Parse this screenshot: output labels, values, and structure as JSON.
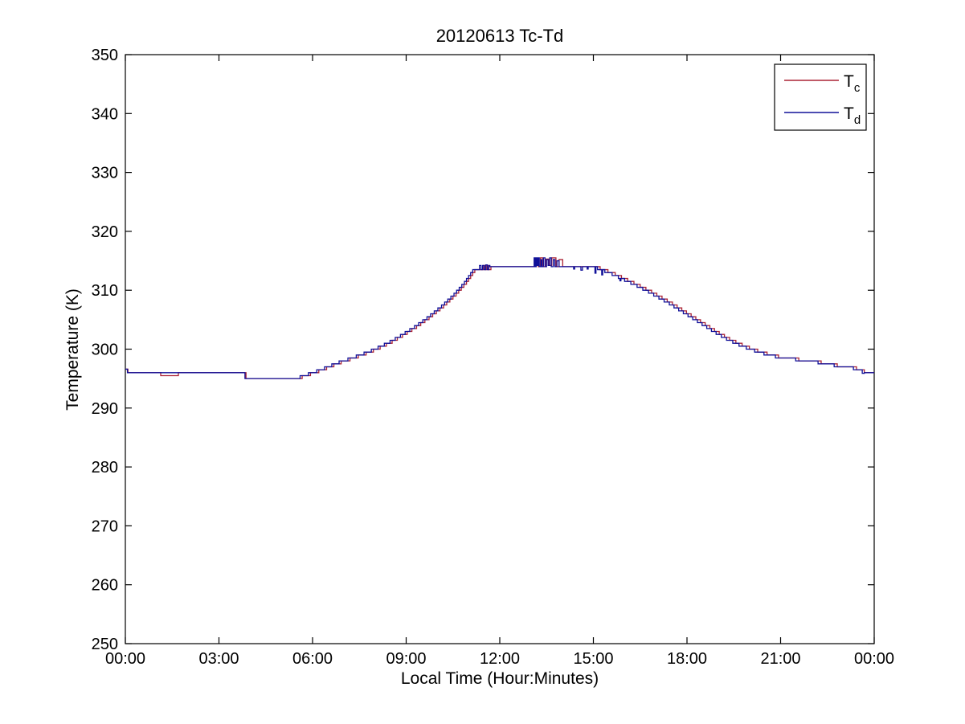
{
  "figure": {
    "background": "#ffffff",
    "axis_color": "#000000"
  },
  "chart_data": {
    "type": "line",
    "title": "20120613 Tc-Td",
    "xlabel": "Local Time (Hour:Minutes)",
    "ylabel": "Temperature (K)",
    "xlim": [
      0,
      1440
    ],
    "ylim": [
      250,
      350
    ],
    "grid": false,
    "interpolation": "step-after",
    "x_ticks": [
      {
        "value": 0,
        "label": "00:00"
      },
      {
        "value": 180,
        "label": "03:00"
      },
      {
        "value": 360,
        "label": "06:00"
      },
      {
        "value": 540,
        "label": "09:00"
      },
      {
        "value": 720,
        "label": "12:00"
      },
      {
        "value": 900,
        "label": "15:00"
      },
      {
        "value": 1080,
        "label": "18:00"
      },
      {
        "value": 1260,
        "label": "21:00"
      },
      {
        "value": 1440,
        "label": "00:00"
      }
    ],
    "y_ticks": [
      {
        "value": 250,
        "label": "250"
      },
      {
        "value": 260,
        "label": "260"
      },
      {
        "value": 270,
        "label": "270"
      },
      {
        "value": 280,
        "label": "280"
      },
      {
        "value": 290,
        "label": "290"
      },
      {
        "value": 300,
        "label": "300"
      },
      {
        "value": 310,
        "label": "310"
      },
      {
        "value": 320,
        "label": "320"
      },
      {
        "value": 330,
        "label": "330"
      },
      {
        "value": 340,
        "label": "340"
      },
      {
        "value": 350,
        "label": "350"
      }
    ],
    "legend": {
      "position": "top-right",
      "entries": [
        {
          "main": "T",
          "sub": "c",
          "color": "#ab2335"
        },
        {
          "main": "T",
          "sub": "d",
          "color": "#101099"
        }
      ]
    },
    "series": [
      {
        "name": "Tc",
        "color": "#ab2335",
        "line_width": 1.3,
        "points_format": "[minutes_after_midnight, kelvin]",
        "points": [
          [
            0,
            296.6
          ],
          [
            5,
            296.0
          ],
          [
            68,
            295.5
          ],
          [
            102,
            296.0
          ],
          [
            232,
            295.0
          ],
          [
            340,
            295.5
          ],
          [
            356,
            296.0
          ],
          [
            372,
            296.5
          ],
          [
            387,
            297.0
          ],
          [
            401,
            297.5
          ],
          [
            415,
            298.0
          ],
          [
            432,
            298.5
          ],
          [
            448,
            299.0
          ],
          [
            463,
            299.5
          ],
          [
            477,
            300.0
          ],
          [
            490,
            300.5
          ],
          [
            502,
            301.0
          ],
          [
            513,
            301.5
          ],
          [
            523,
            302.0
          ],
          [
            533,
            302.5
          ],
          [
            542,
            303.0
          ],
          [
            551,
            303.5
          ],
          [
            560,
            304.0
          ],
          [
            568,
            304.5
          ],
          [
            576,
            305.0
          ],
          [
            584,
            305.5
          ],
          [
            591,
            306.0
          ],
          [
            598,
            306.5
          ],
          [
            605,
            307.0
          ],
          [
            612,
            307.5
          ],
          [
            618,
            308.0
          ],
          [
            624,
            308.5
          ],
          [
            630,
            309.0
          ],
          [
            636,
            309.5
          ],
          [
            641,
            310.0
          ],
          [
            646,
            310.5
          ],
          [
            651,
            311.0
          ],
          [
            656,
            311.5
          ],
          [
            660,
            312.0
          ],
          [
            664,
            312.5
          ],
          [
            668,
            313.0
          ],
          [
            672,
            313.5
          ],
          [
            689,
            314.2
          ],
          [
            692,
            313.5
          ],
          [
            695,
            314.2
          ],
          [
            698,
            313.5
          ],
          [
            703,
            314.0
          ],
          [
            790,
            315.3
          ],
          [
            794,
            314.0
          ],
          [
            798,
            315.5
          ],
          [
            803,
            314.0
          ],
          [
            808,
            315.3
          ],
          [
            814,
            314.2
          ],
          [
            820,
            315.5
          ],
          [
            828,
            314.0
          ],
          [
            834,
            315.2
          ],
          [
            841,
            314.0
          ],
          [
            913,
            313.5
          ],
          [
            928,
            313.0
          ],
          [
            942,
            312.5
          ],
          [
            954,
            312.0
          ],
          [
            966,
            311.5
          ],
          [
            978,
            311.0
          ],
          [
            990,
            310.5
          ],
          [
            1001,
            310.0
          ],
          [
            1012,
            309.5
          ],
          [
            1022,
            309.0
          ],
          [
            1032,
            308.5
          ],
          [
            1042,
            308.0
          ],
          [
            1052,
            307.5
          ],
          [
            1061,
            307.0
          ],
          [
            1070,
            306.5
          ],
          [
            1079,
            306.0
          ],
          [
            1088,
            305.5
          ],
          [
            1097,
            305.0
          ],
          [
            1106,
            304.5
          ],
          [
            1115,
            304.0
          ],
          [
            1124,
            303.5
          ],
          [
            1133,
            303.0
          ],
          [
            1142,
            302.5
          ],
          [
            1152,
            302.0
          ],
          [
            1162,
            301.5
          ],
          [
            1174,
            301.0
          ],
          [
            1186,
            300.5
          ],
          [
            1200,
            300.0
          ],
          [
            1216,
            299.5
          ],
          [
            1234,
            299.0
          ],
          [
            1256,
            298.5
          ],
          [
            1295,
            298.0
          ],
          [
            1338,
            297.5
          ],
          [
            1369,
            297.0
          ],
          [
            1406,
            296.5
          ],
          [
            1421,
            296.0
          ],
          [
            1440,
            296.0
          ]
        ]
      },
      {
        "name": "Td",
        "color": "#101099",
        "line_width": 1.3,
        "points_format": "[minutes_after_midnight, kelvin]",
        "points": [
          [
            0,
            296.6
          ],
          [
            4,
            296.0
          ],
          [
            230,
            295.0
          ],
          [
            336,
            295.5
          ],
          [
            352,
            296.0
          ],
          [
            368,
            296.5
          ],
          [
            383,
            297.0
          ],
          [
            397,
            297.5
          ],
          [
            411,
            298.0
          ],
          [
            428,
            298.5
          ],
          [
            444,
            299.0
          ],
          [
            459,
            299.5
          ],
          [
            473,
            300.0
          ],
          [
            486,
            300.5
          ],
          [
            498,
            301.0
          ],
          [
            509,
            301.5
          ],
          [
            519,
            302.0
          ],
          [
            529,
            302.5
          ],
          [
            538,
            303.0
          ],
          [
            547,
            303.5
          ],
          [
            556,
            304.0
          ],
          [
            564,
            304.5
          ],
          [
            572,
            305.0
          ],
          [
            580,
            305.5
          ],
          [
            587,
            306.0
          ],
          [
            594,
            306.5
          ],
          [
            601,
            307.0
          ],
          [
            608,
            307.5
          ],
          [
            614,
            308.0
          ],
          [
            620,
            308.5
          ],
          [
            626,
            309.0
          ],
          [
            632,
            309.5
          ],
          [
            637,
            310.0
          ],
          [
            642,
            310.5
          ],
          [
            647,
            311.0
          ],
          [
            652,
            311.5
          ],
          [
            656,
            312.0
          ],
          [
            660,
            312.5
          ],
          [
            664,
            313.0
          ],
          [
            668,
            313.5
          ],
          [
            681,
            314.2
          ],
          [
            684,
            313.5
          ],
          [
            687,
            314.2
          ],
          [
            690,
            313.5
          ],
          [
            693,
            314.3
          ],
          [
            696,
            313.5
          ],
          [
            699,
            314.2
          ],
          [
            701,
            314.0
          ],
          [
            786,
            315.5
          ],
          [
            788,
            314.0
          ],
          [
            790,
            315.5
          ],
          [
            792,
            314.2
          ],
          [
            794,
            315.5
          ],
          [
            796,
            314.0
          ],
          [
            799,
            315.2
          ],
          [
            801,
            314.0
          ],
          [
            804,
            315.5
          ],
          [
            807,
            314.0
          ],
          [
            810,
            315.2
          ],
          [
            813,
            314.2
          ],
          [
            816,
            315.5
          ],
          [
            819,
            314.0
          ],
          [
            823,
            315.2
          ],
          [
            826,
            314.0
          ],
          [
            830,
            315.0
          ],
          [
            834,
            314.0
          ],
          [
            862,
            313.6
          ],
          [
            864,
            314.0
          ],
          [
            876,
            313.4
          ],
          [
            879,
            314.0
          ],
          [
            888,
            313.6
          ],
          [
            890,
            314.0
          ],
          [
            903,
            312.9
          ],
          [
            905,
            314.0
          ],
          [
            908,
            313.5
          ],
          [
            916,
            312.6
          ],
          [
            918,
            313.5
          ],
          [
            922,
            313.0
          ],
          [
            936,
            312.5
          ],
          [
            948,
            312.0
          ],
          [
            951,
            311.6
          ],
          [
            953,
            312.0
          ],
          [
            960,
            311.5
          ],
          [
            972,
            311.0
          ],
          [
            984,
            310.5
          ],
          [
            995,
            310.0
          ],
          [
            1006,
            309.5
          ],
          [
            1016,
            309.0
          ],
          [
            1026,
            308.5
          ],
          [
            1036,
            308.0
          ],
          [
            1046,
            307.5
          ],
          [
            1055,
            307.0
          ],
          [
            1064,
            306.5
          ],
          [
            1073,
            306.0
          ],
          [
            1082,
            305.5
          ],
          [
            1091,
            305.0
          ],
          [
            1100,
            304.5
          ],
          [
            1109,
            304.0
          ],
          [
            1118,
            303.5
          ],
          [
            1127,
            303.0
          ],
          [
            1136,
            302.5
          ],
          [
            1146,
            302.0
          ],
          [
            1156,
            301.5
          ],
          [
            1168,
            301.0
          ],
          [
            1180,
            300.5
          ],
          [
            1194,
            300.0
          ],
          [
            1210,
            299.5
          ],
          [
            1228,
            299.0
          ],
          [
            1250,
            298.5
          ],
          [
            1289,
            298.0
          ],
          [
            1332,
            297.5
          ],
          [
            1363,
            297.0
          ],
          [
            1400,
            296.5
          ],
          [
            1417,
            295.9
          ],
          [
            1421,
            296.0
          ],
          [
            1440,
            296.0
          ]
        ]
      }
    ]
  }
}
